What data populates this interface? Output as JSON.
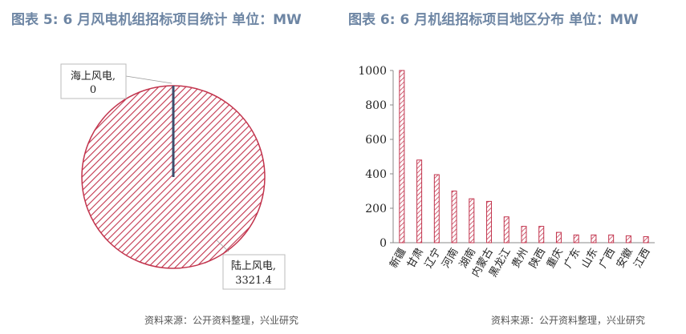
{
  "colors": {
    "title": "#6e86a4",
    "pie_line": "#c2344d",
    "bar_line": "#c2344d",
    "callout_marker": "#3d4f6e",
    "axis": "#888888"
  },
  "left": {
    "title": "图表 5:  6 月风电机组招标项目统计  单位：MW",
    "source": "资料来源：公开资料整理，兴业研究"
  },
  "right": {
    "title": "图表 6:  6 月机组招标项目地区分布  单位：MW",
    "source": "资料来源：公开资料整理，兴业研究"
  },
  "chart_data": [
    {
      "type": "pie",
      "slices": [
        {
          "name": "海上风电",
          "value": 0,
          "label_line1": "海上风电,",
          "label_line2": "0"
        },
        {
          "name": "陆上风电",
          "value": 3321.4,
          "label_line1": "陆上风电,",
          "label_line2": "3321.4"
        }
      ],
      "fill": "diagonal-hatch"
    },
    {
      "type": "bar",
      "categories": [
        "新疆",
        "甘肃",
        "辽宁",
        "河南",
        "湖南",
        "内蒙古",
        "黑龙江",
        "贵州",
        "陕西",
        "重庆",
        "广东",
        "山东",
        "广西",
        "安徽",
        "江西"
      ],
      "values": [
        1000,
        480,
        395,
        300,
        255,
        240,
        150,
        95,
        95,
        60,
        45,
        45,
        45,
        40,
        35
      ],
      "ylim": [
        0,
        1000
      ],
      "yticks": [
        "0",
        "200",
        "400",
        "600",
        "800",
        "1000"
      ],
      "fill": "diagonal-hatch"
    }
  ]
}
